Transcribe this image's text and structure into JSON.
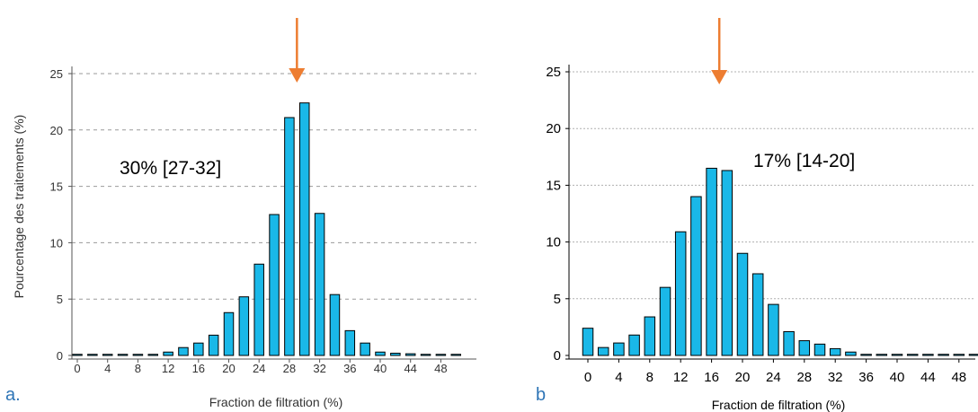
{
  "chart_data": [
    {
      "type": "bar",
      "panel_label": "a.",
      "annotation": "30% [27-32]",
      "ylabel": "Pourcentage des traitements (%)",
      "xlabel": "Fraction de filtration (%)",
      "x": [
        0,
        2,
        4,
        6,
        8,
        10,
        12,
        14,
        16,
        18,
        20,
        22,
        24,
        26,
        28,
        30,
        32,
        34,
        36,
        38,
        40,
        42,
        44,
        46,
        48,
        50
      ],
      "values": [
        0.1,
        0.1,
        0.1,
        0.1,
        0.1,
        0.1,
        0.3,
        0.7,
        1.1,
        1.8,
        3.8,
        5.2,
        8.1,
        12.5,
        21.1,
        22.4,
        12.6,
        5.4,
        2.2,
        1.1,
        0.3,
        0.2,
        0.15,
        0.1,
        0.1,
        0.1
      ],
      "xticks": [
        "0",
        "4",
        "8",
        "12",
        "16",
        "20",
        "24",
        "28",
        "32",
        "36",
        "40",
        "44",
        "48"
      ],
      "yticks": [
        "0",
        "5",
        "10",
        "15",
        "20",
        "25"
      ],
      "ylim": [
        0,
        25
      ],
      "arrow_at": 29,
      "bar_color": "#1AB8E8",
      "arrow_color": "#ED7D31",
      "panel_label_color": "#2E75B6",
      "grid": true
    },
    {
      "type": "bar",
      "panel_label": "b",
      "annotation": "17% [14-20]",
      "ylabel": "",
      "xlabel": "Fraction de filtration (%)",
      "x": [
        0,
        2,
        4,
        6,
        8,
        10,
        12,
        14,
        16,
        18,
        20,
        22,
        24,
        26,
        28,
        30,
        32,
        34,
        36,
        38,
        40,
        42,
        44,
        46,
        48,
        50
      ],
      "values": [
        2.4,
        0.7,
        1.1,
        1.8,
        3.4,
        6.0,
        10.9,
        14.0,
        16.5,
        16.3,
        9.0,
        7.2,
        4.5,
        2.1,
        1.3,
        1.0,
        0.6,
        0.3,
        0.1,
        0.1,
        0.1,
        0.1,
        0.1,
        0.1,
        0.1,
        0.1
      ],
      "xticks": [
        "0",
        "4",
        "8",
        "12",
        "16",
        "20",
        "24",
        "28",
        "32",
        "36",
        "40",
        "44",
        "48"
      ],
      "yticks": [
        "0",
        "5",
        "10",
        "15",
        "20",
        "25"
      ],
      "ylim": [
        0,
        25
      ],
      "arrow_at": 17,
      "bar_color": "#1AB8E8",
      "arrow_color": "#ED7D31",
      "panel_label_color": "#2E75B6",
      "grid": true
    }
  ]
}
